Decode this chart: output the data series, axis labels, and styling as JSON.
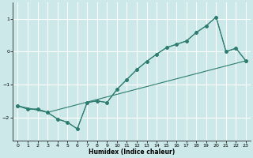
{
  "title": "",
  "xlabel": "Humidex (Indice chaleur)",
  "ylabel": "",
  "xlim": [
    -0.5,
    23.5
  ],
  "ylim": [
    -2.7,
    1.5
  ],
  "yticks": [
    -2,
    -1,
    0,
    1
  ],
  "xticks": [
    0,
    1,
    2,
    3,
    4,
    5,
    6,
    7,
    8,
    9,
    10,
    11,
    12,
    13,
    14,
    15,
    16,
    17,
    18,
    19,
    20,
    21,
    22,
    23
  ],
  "bg_color": "#cce8e8",
  "grid_color": "#ffffff",
  "line_color": "#2e7d70",
  "line1_x": [
    0,
    1,
    2,
    3,
    4,
    5,
    6,
    7,
    8,
    9,
    10,
    11,
    12,
    13,
    14,
    15,
    16,
    17,
    18,
    19,
    20,
    21,
    22,
    23
  ],
  "line1_y": [
    -1.65,
    -1.75,
    -1.75,
    -1.85,
    -2.05,
    -2.15,
    -2.35,
    -1.55,
    -1.5,
    -1.55,
    -1.15,
    -0.85,
    -0.55,
    -0.3,
    -0.08,
    0.12,
    0.22,
    0.32,
    0.58,
    0.78,
    1.05,
    0.0,
    0.1,
    -0.28
  ],
  "line2_x": [
    0,
    1,
    2,
    3,
    23
  ],
  "line2_y": [
    -1.65,
    -1.75,
    -1.75,
    -1.85,
    -0.28
  ],
  "line3_x": [
    0,
    3,
    4,
    5,
    6,
    7,
    8,
    9,
    10,
    11,
    12,
    13,
    14,
    15,
    16,
    17,
    18,
    19,
    20,
    21,
    22,
    23
  ],
  "line3_y": [
    -1.65,
    -1.85,
    -2.05,
    -2.15,
    -2.35,
    -1.55,
    -1.5,
    -1.55,
    -1.15,
    -0.85,
    -0.55,
    -0.3,
    -0.08,
    0.12,
    0.22,
    0.32,
    0.58,
    0.78,
    1.05,
    0.0,
    0.1,
    -0.28
  ]
}
